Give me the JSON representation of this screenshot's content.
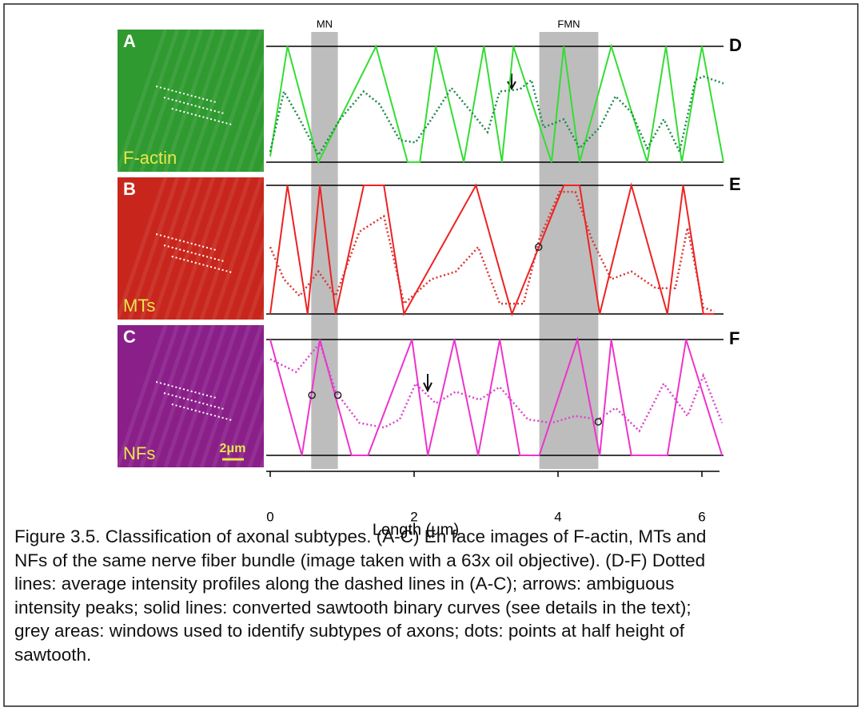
{
  "images": [
    {
      "letter": "A",
      "label": "F-actin",
      "color": "#2f9a2f"
    },
    {
      "letter": "B",
      "label": "MTs",
      "color": "#c8261c"
    },
    {
      "letter": "C",
      "label": "NFs",
      "color": "#8a1f8a"
    }
  ],
  "scale_bar": "2μm",
  "chart_data": {
    "type": "line",
    "xlabel": "Length (μm)",
    "xlim": [
      0,
      6.3
    ],
    "xticks": [
      0,
      2,
      4,
      6
    ],
    "windows": [
      {
        "label": "MN",
        "range": [
          0.57,
          0.94
        ]
      },
      {
        "label": "FMN",
        "range": [
          3.74,
          4.56
        ]
      }
    ],
    "panels": [
      {
        "letter": "D",
        "ylim": [
          0,
          1
        ],
        "series": [
          {
            "color": "#33dd33",
            "style": "solid",
            "x": [
              0,
              0.24,
              0.67,
              1.47,
              1.91,
              2.08,
              2.3,
              2.69,
              2.97,
              3.22,
              3.38,
              3.91,
              4.08,
              4.3,
              4.74,
              5.24,
              5.5,
              5.72,
              6.0,
              6.3
            ],
            "values": [
              0.05,
              1,
              0,
              1,
              0,
              0,
              1,
              0,
              1,
              0,
              1,
              0,
              1,
              0,
              1,
              0,
              1,
              0,
              1,
              0
            ]
          },
          {
            "color": "#1a8a4a",
            "style": "dotted",
            "x": [
              0,
              0.19,
              0.41,
              0.67,
              0.97,
              1.3,
              1.52,
              1.8,
              2.02,
              2.24,
              2.52,
              2.8,
              3.02,
              3.19,
              3.47,
              3.63,
              3.8,
              4.08,
              4.3,
              4.58,
              4.8,
              5.02,
              5.24,
              5.47,
              5.69,
              5.91,
              6.02,
              6.3
            ],
            "values": [
              0.09,
              0.61,
              0.37,
              0.06,
              0.37,
              0.61,
              0.5,
              0.19,
              0.17,
              0.37,
              0.64,
              0.43,
              0.26,
              0.61,
              0.63,
              0.71,
              0.3,
              0.37,
              0.12,
              0.3,
              0.57,
              0.43,
              0.12,
              0.37,
              0.09,
              0.71,
              0.74,
              0.68
            ]
          }
        ],
        "points": null
      },
      {
        "letter": "E",
        "ylim": [
          0,
          1
        ],
        "series": [
          {
            "color": "#ee2222",
            "style": "solid",
            "x": [
              0,
              0.24,
              0.52,
              0.69,
              0.91,
              1.3,
              1.58,
              1.86,
              2.86,
              3.36,
              4.08,
              4.3,
              4.58,
              5.02,
              5.52,
              5.74,
              6.02,
              6.17
            ],
            "values": [
              0,
              1,
              0,
              1,
              0,
              1,
              1,
              0,
              1,
              0,
              1,
              1,
              0,
              1,
              0,
              1,
              0,
              0
            ]
          },
          {
            "color": "#dd3333",
            "style": "dotted",
            "x": [
              0,
              0.19,
              0.41,
              0.67,
              0.91,
              1.24,
              1.58,
              1.86,
              2.24,
              2.58,
              2.89,
              3.19,
              3.52,
              3.74,
              4.02,
              4.24,
              4.47,
              4.74,
              5.02,
              5.36,
              5.63,
              5.8,
              6.02,
              6.17
            ],
            "values": [
              0.52,
              0.27,
              0.14,
              0.33,
              0.14,
              0.64,
              0.76,
              0.08,
              0.27,
              0.33,
              0.52,
              0.08,
              0.08,
              0.58,
              0.95,
              0.95,
              0.58,
              0.27,
              0.33,
              0.2,
              0.2,
              0.67,
              0.05,
              0.02
            ]
          }
        ],
        "points": {
          "x": [
            3.73
          ],
          "values": [
            0.52
          ]
        }
      },
      {
        "letter": "F",
        "ylim": [
          0,
          1
        ],
        "series": [
          {
            "color": "#ee33cc",
            "style": "solid",
            "x": [
              0,
              0.44,
              0.69,
              1.13,
              1.36,
              1.97,
              2.19,
              2.56,
              2.89,
              3.19,
              3.47,
              3.74,
              4.27,
              4.58,
              4.74,
              5.02,
              5.24,
              5.52,
              5.78,
              6.28
            ],
            "values": [
              1,
              0,
              1,
              0,
              0,
              1,
              0,
              1,
              0,
              1,
              0,
              0,
              1,
              0,
              1,
              0,
              0,
              0,
              1,
              0
            ]
          },
          {
            "color": "#dd44cc",
            "style": "dotted",
            "x": [
              0,
              0.36,
              0.69,
              0.91,
              1.24,
              1.58,
              1.8,
              2.02,
              2.3,
              2.58,
              2.91,
              3.19,
              3.58,
              3.91,
              4.24,
              4.56,
              4.8,
              5.13,
              5.47,
              5.8,
              6.02,
              6.28
            ],
            "values": [
              0.83,
              0.72,
              0.97,
              0.55,
              0.28,
              0.24,
              0.31,
              0.62,
              0.45,
              0.55,
              0.48,
              0.59,
              0.31,
              0.28,
              0.34,
              0.31,
              0.41,
              0.21,
              0.62,
              0.34,
              0.69,
              0.28
            ]
          }
        ],
        "points": {
          "x": [
            0.58,
            0.94,
            4.56
          ],
          "values": [
            0.52,
            0.52,
            0.29
          ]
        }
      }
    ]
  },
  "caption": "Figure 3.5. Classification of axonal subtypes. (A-C) En face images of F-actin, MTs and NFs of the same nerve fiber bundle (image taken with a 63x oil objective). (D-F) Dotted lines: average intensity profiles along the dashed lines in (A-C); arrows:  ambiguous intensity peaks; solid lines: converted sawtooth binary curves (see details in the text); grey areas: windows used to identify subtypes of axons; dots: points at half height of sawtooth."
}
